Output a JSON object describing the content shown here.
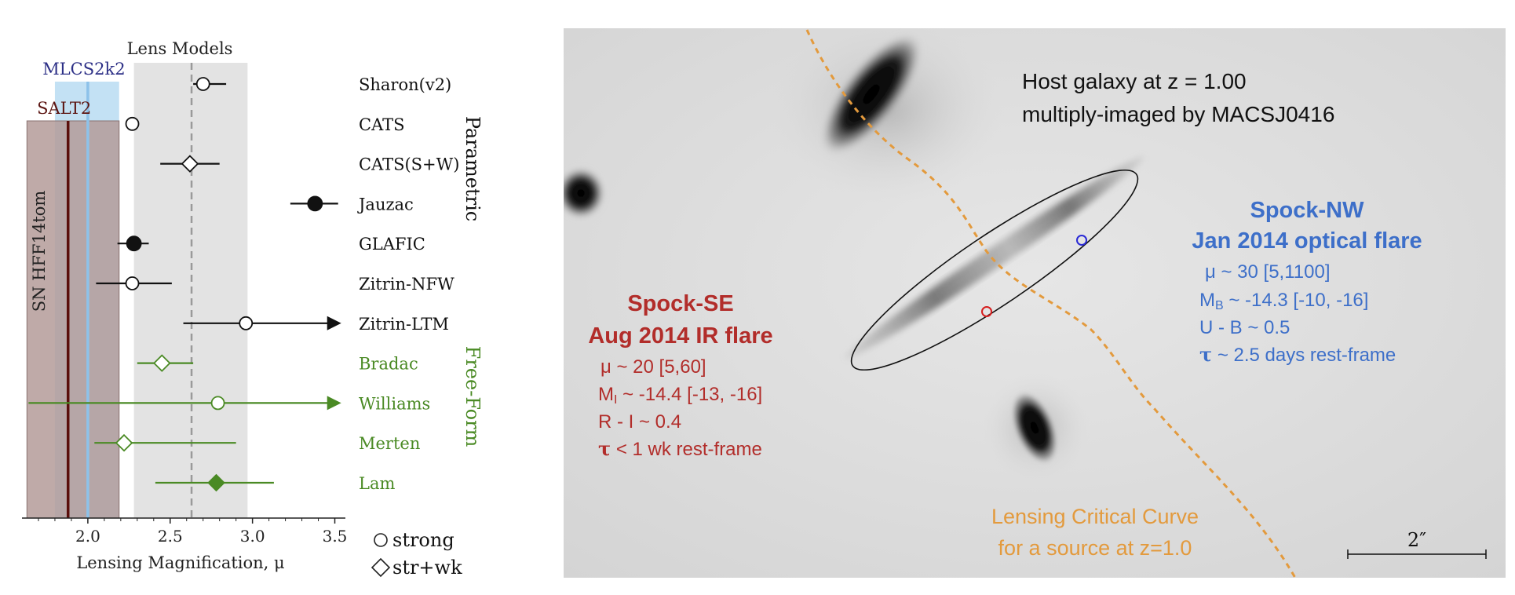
{
  "header_fragment": "",
  "chart_data": {
    "type": "scatter",
    "subtype": "forest-plot",
    "xlabel": "Lensing Magnification, μ",
    "xlim": [
      1.6,
      3.55
    ],
    "xticks": [
      "2.0",
      "2.5",
      "3.0",
      "3.5"
    ],
    "bands": [
      {
        "name": "Lens Models",
        "range": [
          2.28,
          2.97
        ],
        "center": 2.63,
        "color": "#d9d9d9"
      },
      {
        "name": "MLCS2k2",
        "range": [
          1.8,
          2.19
        ],
        "center": 2.0,
        "color": "#b9dcf2"
      },
      {
        "name": "SALT2",
        "range": [
          1.63,
          2.19
        ],
        "center": 1.88,
        "color": "#b49b99"
      }
    ],
    "side_label": "SN HFF14tom",
    "groups": [
      {
        "name": "Parametric",
        "color": "#111111"
      },
      {
        "name": "Free-Form",
        "color": "#4a8a24"
      }
    ],
    "models": [
      {
        "name": "Sharon(v2)",
        "value": 2.7,
        "lo": 2.64,
        "hi": 2.84,
        "marker": "circle-open",
        "group": "Parametric"
      },
      {
        "name": "CATS",
        "value": 2.27,
        "lo": 2.27,
        "hi": 2.3,
        "marker": "circle-open",
        "group": "Parametric"
      },
      {
        "name": "CATS(S+W)",
        "value": 2.62,
        "lo": 2.44,
        "hi": 2.8,
        "marker": "diamond-open",
        "group": "Parametric"
      },
      {
        "name": "Jauzac",
        "value": 3.38,
        "lo": 3.23,
        "hi": 3.52,
        "marker": "circle-filled",
        "group": "Parametric"
      },
      {
        "name": "GLAFIC",
        "value": 2.28,
        "lo": 2.18,
        "hi": 2.37,
        "marker": "circle-filled",
        "group": "Parametric"
      },
      {
        "name": "Zitrin-NFW",
        "value": 2.27,
        "lo": 2.05,
        "hi": 2.51,
        "marker": "circle-open",
        "group": "Parametric"
      },
      {
        "name": "Zitrin-LTM",
        "value": 2.96,
        "lo": 2.58,
        "hi": 3.52,
        "marker": "circle-open",
        "group": "Parametric",
        "arrow": true
      },
      {
        "name": "Bradac",
        "value": 2.45,
        "lo": 2.3,
        "hi": 2.64,
        "marker": "diamond-open",
        "group": "Free-Form"
      },
      {
        "name": "Williams",
        "value": 2.79,
        "lo": 1.64,
        "hi": 3.52,
        "marker": "circle-open",
        "group": "Free-Form",
        "arrow": true
      },
      {
        "name": "Merten",
        "value": 2.22,
        "lo": 2.04,
        "hi": 2.9,
        "marker": "diamond-open",
        "group": "Free-Form"
      },
      {
        "name": "Lam",
        "value": 2.78,
        "lo": 2.41,
        "hi": 3.13,
        "marker": "diamond-filled",
        "group": "Free-Form"
      }
    ],
    "legend": [
      {
        "marker": "circle-open",
        "label": "strong"
      },
      {
        "marker": "diamond-open",
        "label": "str+wk"
      }
    ],
    "grid": false
  },
  "image_panel": {
    "host_line1": "Host galaxy at z = 1.00",
    "host_line2": "multiply-imaged by MACSJ0416",
    "se": {
      "title": "Spock-SE",
      "subtitle": "Aug 2014 IR flare",
      "mu": "μ ~ 20  [5,60]",
      "mag_pre": "M",
      "mag_sub": "I",
      "mag_post": " ~ -14.4  [-13, -16]",
      "color_index": "R - I ~ 0.4",
      "tau_sym": "τ",
      "tau_text": " < 1 wk rest-frame",
      "color": "#b22d2a"
    },
    "nw": {
      "title": "Spock-NW",
      "subtitle": "Jan 2014  optical flare",
      "mu": "μ ~ 30  [5,1100]",
      "mag_pre": "M",
      "mag_sub": "B",
      "mag_post": " ~ -14.3  [-10, -16]",
      "color_index": "U - B ~ 0.5",
      "tau_sym": "τ",
      "tau_text": "  ~  2.5 days rest-frame",
      "color": "#3d6fc9"
    },
    "curve_label1": "Lensing Critical Curve",
    "curve_label2": "for a source at z=1.0",
    "curve_color": "#e39a3d",
    "scale_bar": "2″"
  }
}
